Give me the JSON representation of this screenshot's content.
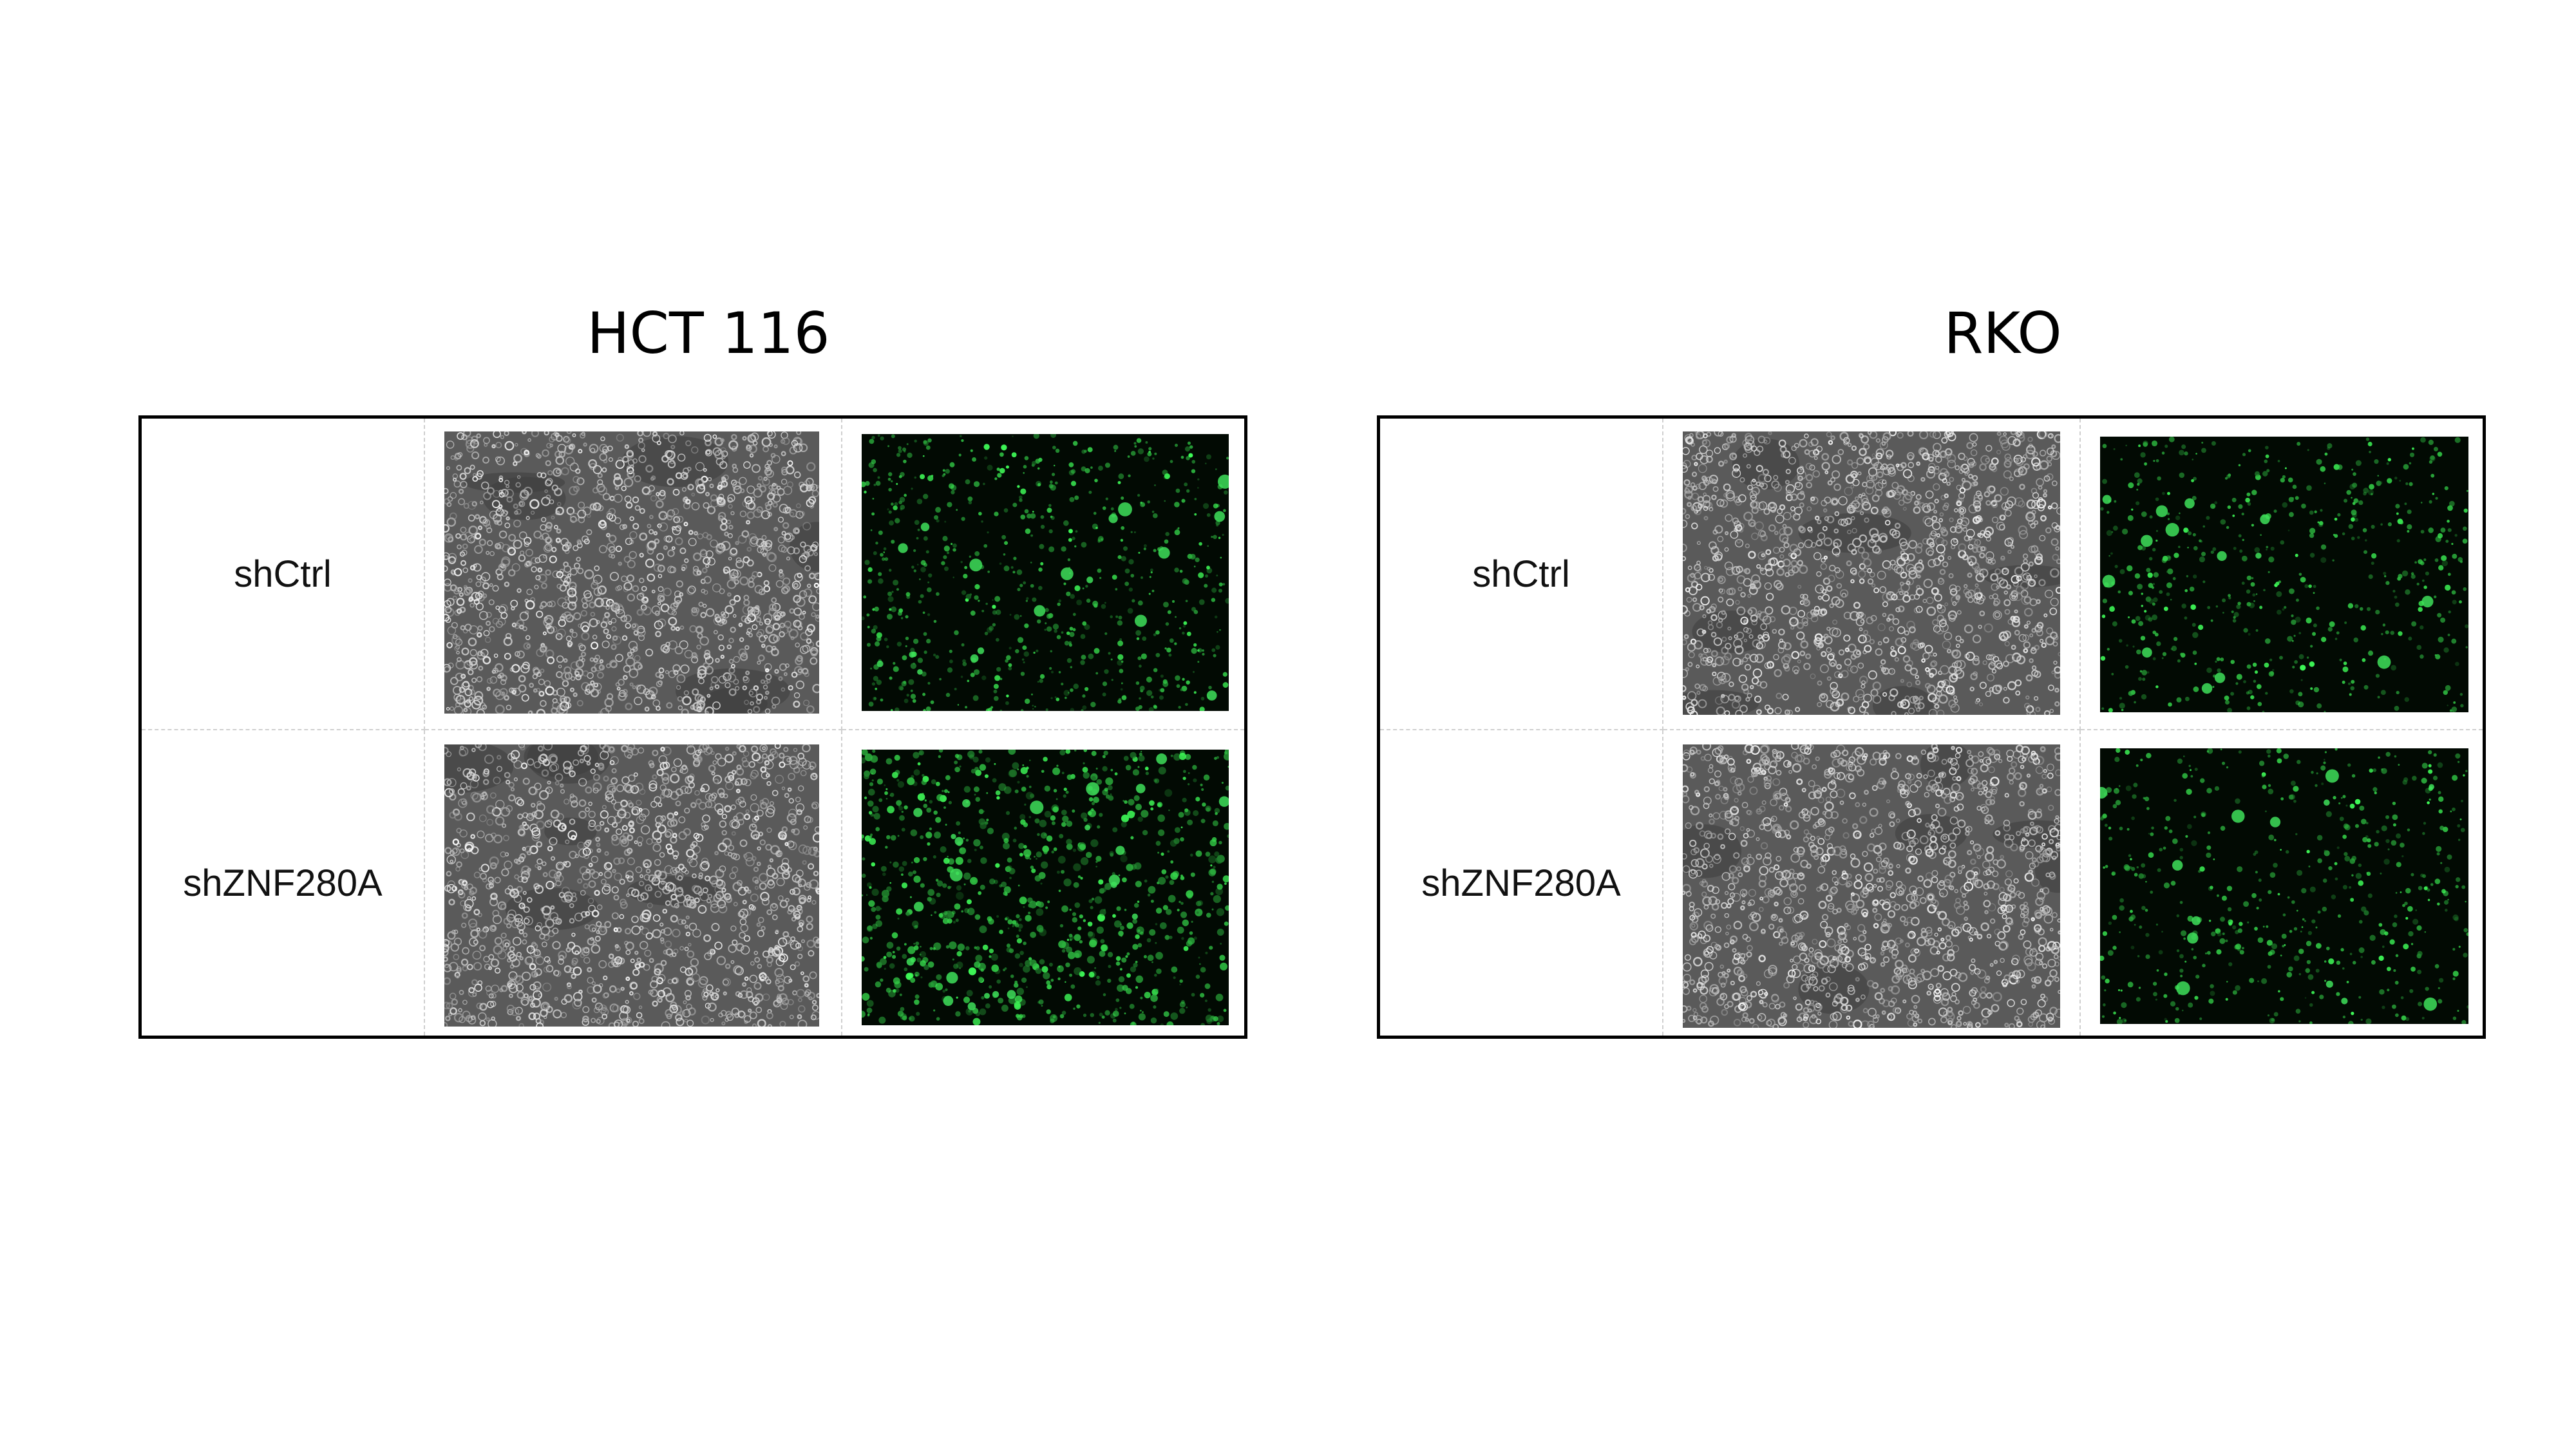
{
  "panels": [
    {
      "title": "HCT 116",
      "rows": [
        {
          "label": "shCtrl"
        },
        {
          "label": "shZNF280A"
        }
      ]
    },
    {
      "title": "RKO",
      "rows": [
        {
          "label": "shCtrl"
        },
        {
          "label": "shZNF280A"
        }
      ]
    }
  ],
  "colors": {
    "brightfield_base": "#5a5a5a",
    "fluorescence_base": "#020a03",
    "fluorescence_signal": "#3ee05a"
  }
}
